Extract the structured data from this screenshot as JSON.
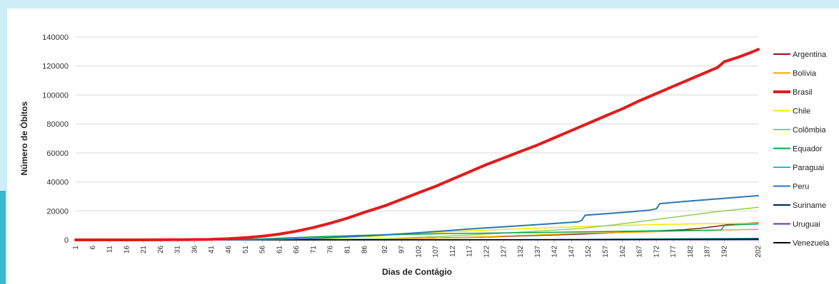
{
  "chart_data": {
    "type": "line",
    "title": "",
    "xlabel": "Dias de Contágio",
    "ylabel": "Número de Óbitos",
    "ylim": [
      0,
      140000
    ],
    "yticks": [
      0,
      20000,
      40000,
      60000,
      80000,
      100000,
      120000,
      140000
    ],
    "xlim": [
      1,
      202
    ],
    "xticks": [
      1,
      6,
      11,
      16,
      21,
      26,
      31,
      36,
      41,
      46,
      51,
      56,
      61,
      66,
      71,
      76,
      81,
      86,
      92,
      97,
      102,
      107,
      112,
      117,
      122,
      127,
      132,
      137,
      142,
      147,
      152,
      157,
      162,
      167,
      172,
      177,
      182,
      187,
      192,
      202
    ],
    "grid": true,
    "legend_position": "right",
    "series": [
      {
        "name": "Argentina",
        "color": "#8b1a1a",
        "width": 1.5,
        "points": [
          [
            1,
            0
          ],
          [
            60,
            50
          ],
          [
            90,
            600
          ],
          [
            120,
            1800
          ],
          [
            150,
            4000
          ],
          [
            170,
            6000
          ],
          [
            180,
            7000
          ],
          [
            185,
            8000
          ],
          [
            190,
            9500
          ],
          [
            193,
            10500
          ],
          [
            196,
            11200
          ],
          [
            202,
            11800
          ]
        ]
      },
      {
        "name": "Bolívia",
        "color": "#f0a800",
        "width": 1.5,
        "points": [
          [
            1,
            0
          ],
          [
            60,
            20
          ],
          [
            90,
            400
          ],
          [
            120,
            2000
          ],
          [
            150,
            4500
          ],
          [
            170,
            5500
          ],
          [
            180,
            6200
          ],
          [
            190,
            6800
          ],
          [
            202,
            7200
          ]
        ]
      },
      {
        "name": "Brasil",
        "color": "#e31b1b",
        "width": 4,
        "points": [
          [
            1,
            0
          ],
          [
            20,
            20
          ],
          [
            30,
            100
          ],
          [
            40,
            300
          ],
          [
            46,
            800
          ],
          [
            51,
            1500
          ],
          [
            56,
            2500
          ],
          [
            61,
            4000
          ],
          [
            66,
            6000
          ],
          [
            71,
            8500
          ],
          [
            76,
            11500
          ],
          [
            81,
            15000
          ],
          [
            86,
            19000
          ],
          [
            92,
            23500
          ],
          [
            97,
            28000
          ],
          [
            102,
            32500
          ],
          [
            107,
            37000
          ],
          [
            112,
            42000
          ],
          [
            117,
            47000
          ],
          [
            122,
            52000
          ],
          [
            127,
            56500
          ],
          [
            132,
            61000
          ],
          [
            137,
            65500
          ],
          [
            142,
            70500
          ],
          [
            147,
            75500
          ],
          [
            152,
            80500
          ],
          [
            157,
            85500
          ],
          [
            162,
            90500
          ],
          [
            167,
            96000
          ],
          [
            172,
            101000
          ],
          [
            177,
            106000
          ],
          [
            182,
            111000
          ],
          [
            187,
            116000
          ],
          [
            190,
            119000
          ],
          [
            191,
            121000
          ],
          [
            192,
            123000
          ],
          [
            196,
            126000
          ],
          [
            200,
            129500
          ],
          [
            202,
            131500
          ]
        ]
      },
      {
        "name": "Chile",
        "color": "#f5e60a",
        "width": 1.5,
        "points": [
          [
            1,
            0
          ],
          [
            50,
            50
          ],
          [
            70,
            600
          ],
          [
            90,
            2500
          ],
          [
            110,
            5500
          ],
          [
            130,
            7500
          ],
          [
            150,
            9200
          ],
          [
            170,
            10500
          ],
          [
            185,
            11100
          ],
          [
            202,
            11400
          ]
        ]
      },
      {
        "name": "Colômbia",
        "color": "#92d050",
        "width": 1.5,
        "points": [
          [
            1,
            0
          ],
          [
            60,
            50
          ],
          [
            90,
            600
          ],
          [
            110,
            2500
          ],
          [
            130,
            5000
          ],
          [
            150,
            8000
          ],
          [
            160,
            10500
          ],
          [
            170,
            13500
          ],
          [
            180,
            16500
          ],
          [
            190,
            19500
          ],
          [
            202,
            22500
          ]
        ]
      },
      {
        "name": "Equador",
        "color": "#00a650",
        "width": 1.5,
        "points": [
          [
            1,
            0
          ],
          [
            40,
            100
          ],
          [
            55,
            600
          ],
          [
            70,
            2000
          ],
          [
            90,
            3500
          ],
          [
            110,
            4300
          ],
          [
            130,
            4900
          ],
          [
            150,
            5500
          ],
          [
            170,
            6200
          ],
          [
            185,
            6600
          ],
          [
            191,
            6800
          ],
          [
            192,
            9900
          ],
          [
            196,
            10500
          ],
          [
            202,
            11000
          ]
        ]
      },
      {
        "name": "Paraguai",
        "color": "#2ab7d9",
        "width": 1.5,
        "points": [
          [
            1,
            0
          ],
          [
            100,
            50
          ],
          [
            140,
            200
          ],
          [
            170,
            700
          ],
          [
            202,
            1100
          ]
        ]
      },
      {
        "name": "Peru",
        "color": "#2e75b6",
        "width": 2,
        "points": [
          [
            1,
            0
          ],
          [
            50,
            50
          ],
          [
            60,
            400
          ],
          [
            70,
            1000
          ],
          [
            80,
            2000
          ],
          [
            90,
            3200
          ],
          [
            100,
            4600
          ],
          [
            110,
            6300
          ],
          [
            120,
            8000
          ],
          [
            130,
            9500
          ],
          [
            140,
            11000
          ],
          [
            149,
            12500
          ],
          [
            150,
            13500
          ],
          [
            151,
            17000
          ],
          [
            160,
            18500
          ],
          [
            170,
            20500
          ],
          [
            172,
            21500
          ],
          [
            173,
            25000
          ],
          [
            180,
            26500
          ],
          [
            190,
            28300
          ],
          [
            202,
            30500
          ]
        ]
      },
      {
        "name": "Suriname",
        "color": "#002060",
        "width": 1.5,
        "points": [
          [
            1,
            0
          ],
          [
            100,
            5
          ],
          [
            150,
            40
          ],
          [
            202,
            90
          ]
        ]
      },
      {
        "name": "Uruguai",
        "color": "#7030a0",
        "width": 1.5,
        "points": [
          [
            1,
            0
          ],
          [
            100,
            20
          ],
          [
            150,
            35
          ],
          [
            202,
            50
          ]
        ]
      },
      {
        "name": "Venezuela",
        "color": "#000000",
        "width": 1.5,
        "points": [
          [
            1,
            0
          ],
          [
            100,
            50
          ],
          [
            150,
            200
          ],
          [
            202,
            600
          ]
        ]
      }
    ]
  }
}
